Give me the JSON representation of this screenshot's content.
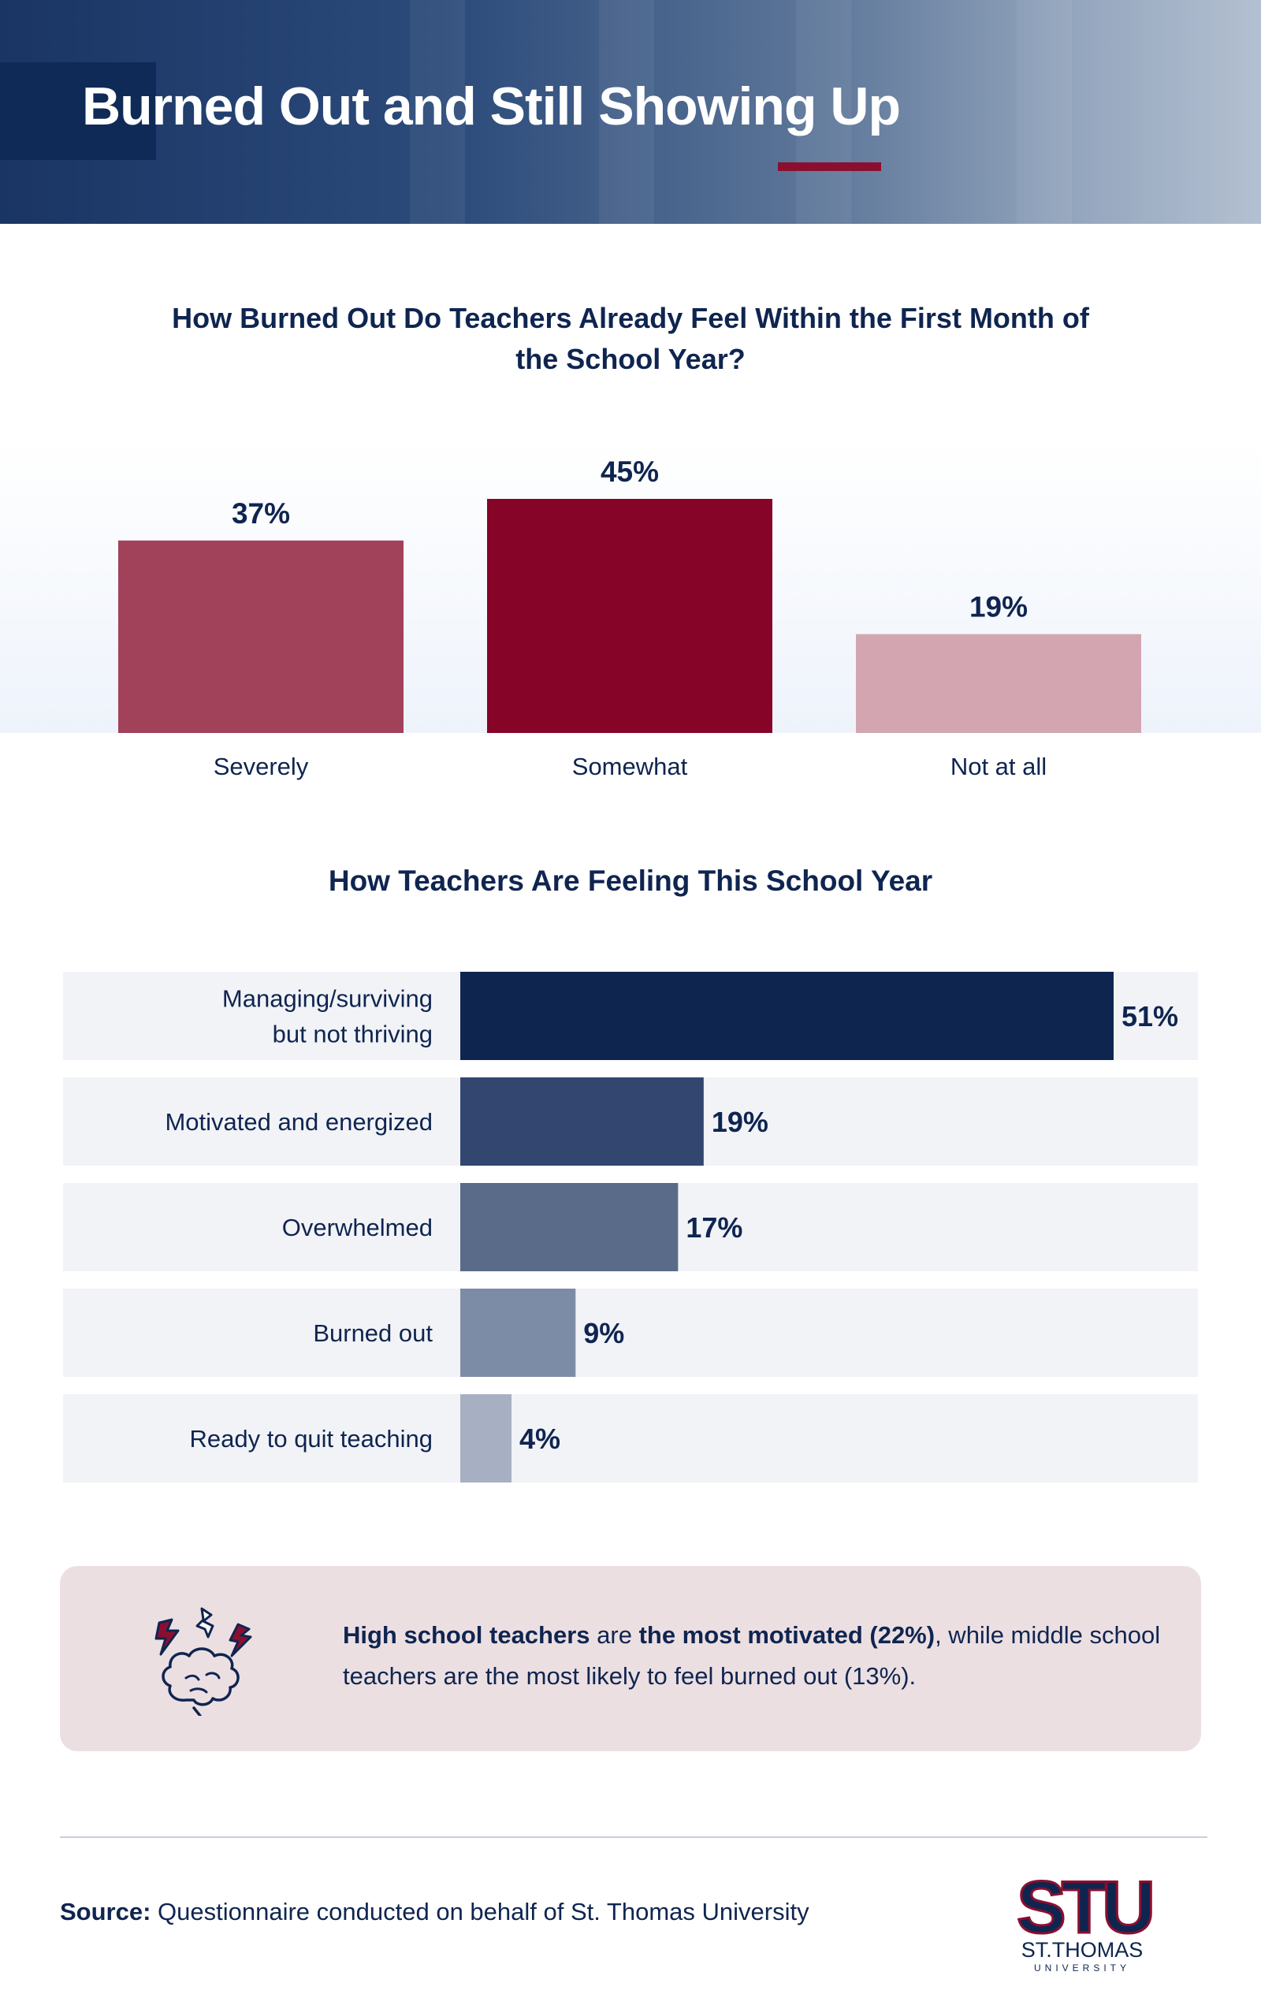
{
  "header": {
    "title": "Burned Out and Still Showing Up"
  },
  "colors": {
    "maroon_dark": "#860428",
    "maroon_mid": "#a2415a",
    "maroon_light": "#d3a5b1",
    "navy_1": "#0e2550",
    "navy_2": "#324670",
    "navy_3": "#596b89",
    "navy_4": "#7d8ca6",
    "navy_5": "#a7b0c2",
    "row_bg": "#f2f3f7",
    "note_bg": "#ecdfe2"
  },
  "chart_data": [
    {
      "type": "bar",
      "title_lines": [
        "How Burned Out Do Teachers Already Feel Within the First Month of",
        "the School Year?"
      ],
      "categories": [
        "Severely",
        "Somewhat",
        "Not at all"
      ],
      "values": [
        37,
        45,
        19
      ],
      "value_labels": [
        "37%",
        "45%",
        "19%"
      ],
      "colors": [
        "#a2415a",
        "#860428",
        "#d3a5b1"
      ],
      "ylim": [
        0,
        45
      ],
      "xlabel": "",
      "ylabel": ""
    },
    {
      "type": "bar",
      "orientation": "horizontal",
      "title": "How Teachers Are Feeling This School Year",
      "categories": [
        [
          "Managing/surviving",
          "but not thriving"
        ],
        [
          "Motivated and energized"
        ],
        [
          "Overwhelmed"
        ],
        [
          "Burned out"
        ],
        [
          "Ready to quit teaching"
        ]
      ],
      "values": [
        51,
        19,
        17,
        9,
        4
      ],
      "value_labels": [
        "51%",
        "19%",
        "17%",
        "9%",
        "4%"
      ],
      "colors": [
        "#0e2550",
        "#324670",
        "#596b89",
        "#7d8ca6",
        "#a7b0c2"
      ],
      "xlim": [
        0,
        51
      ]
    }
  ],
  "note": {
    "icon": "frustrated-brain-lightning-icon",
    "part1_bold": "High school teachers",
    "part2": " are ",
    "part3_bold": "the most motivated (22%)",
    "part4": ", while middle school teachers are the most likely to feel burned out (13%)."
  },
  "footer": {
    "source_label": "Source:",
    "source_text": " Questionnaire conducted on behalf of St. Thomas University",
    "logo_mark": "STU",
    "logo_name": "ST.THOMAS",
    "logo_sub": "UNIVERSITY"
  }
}
